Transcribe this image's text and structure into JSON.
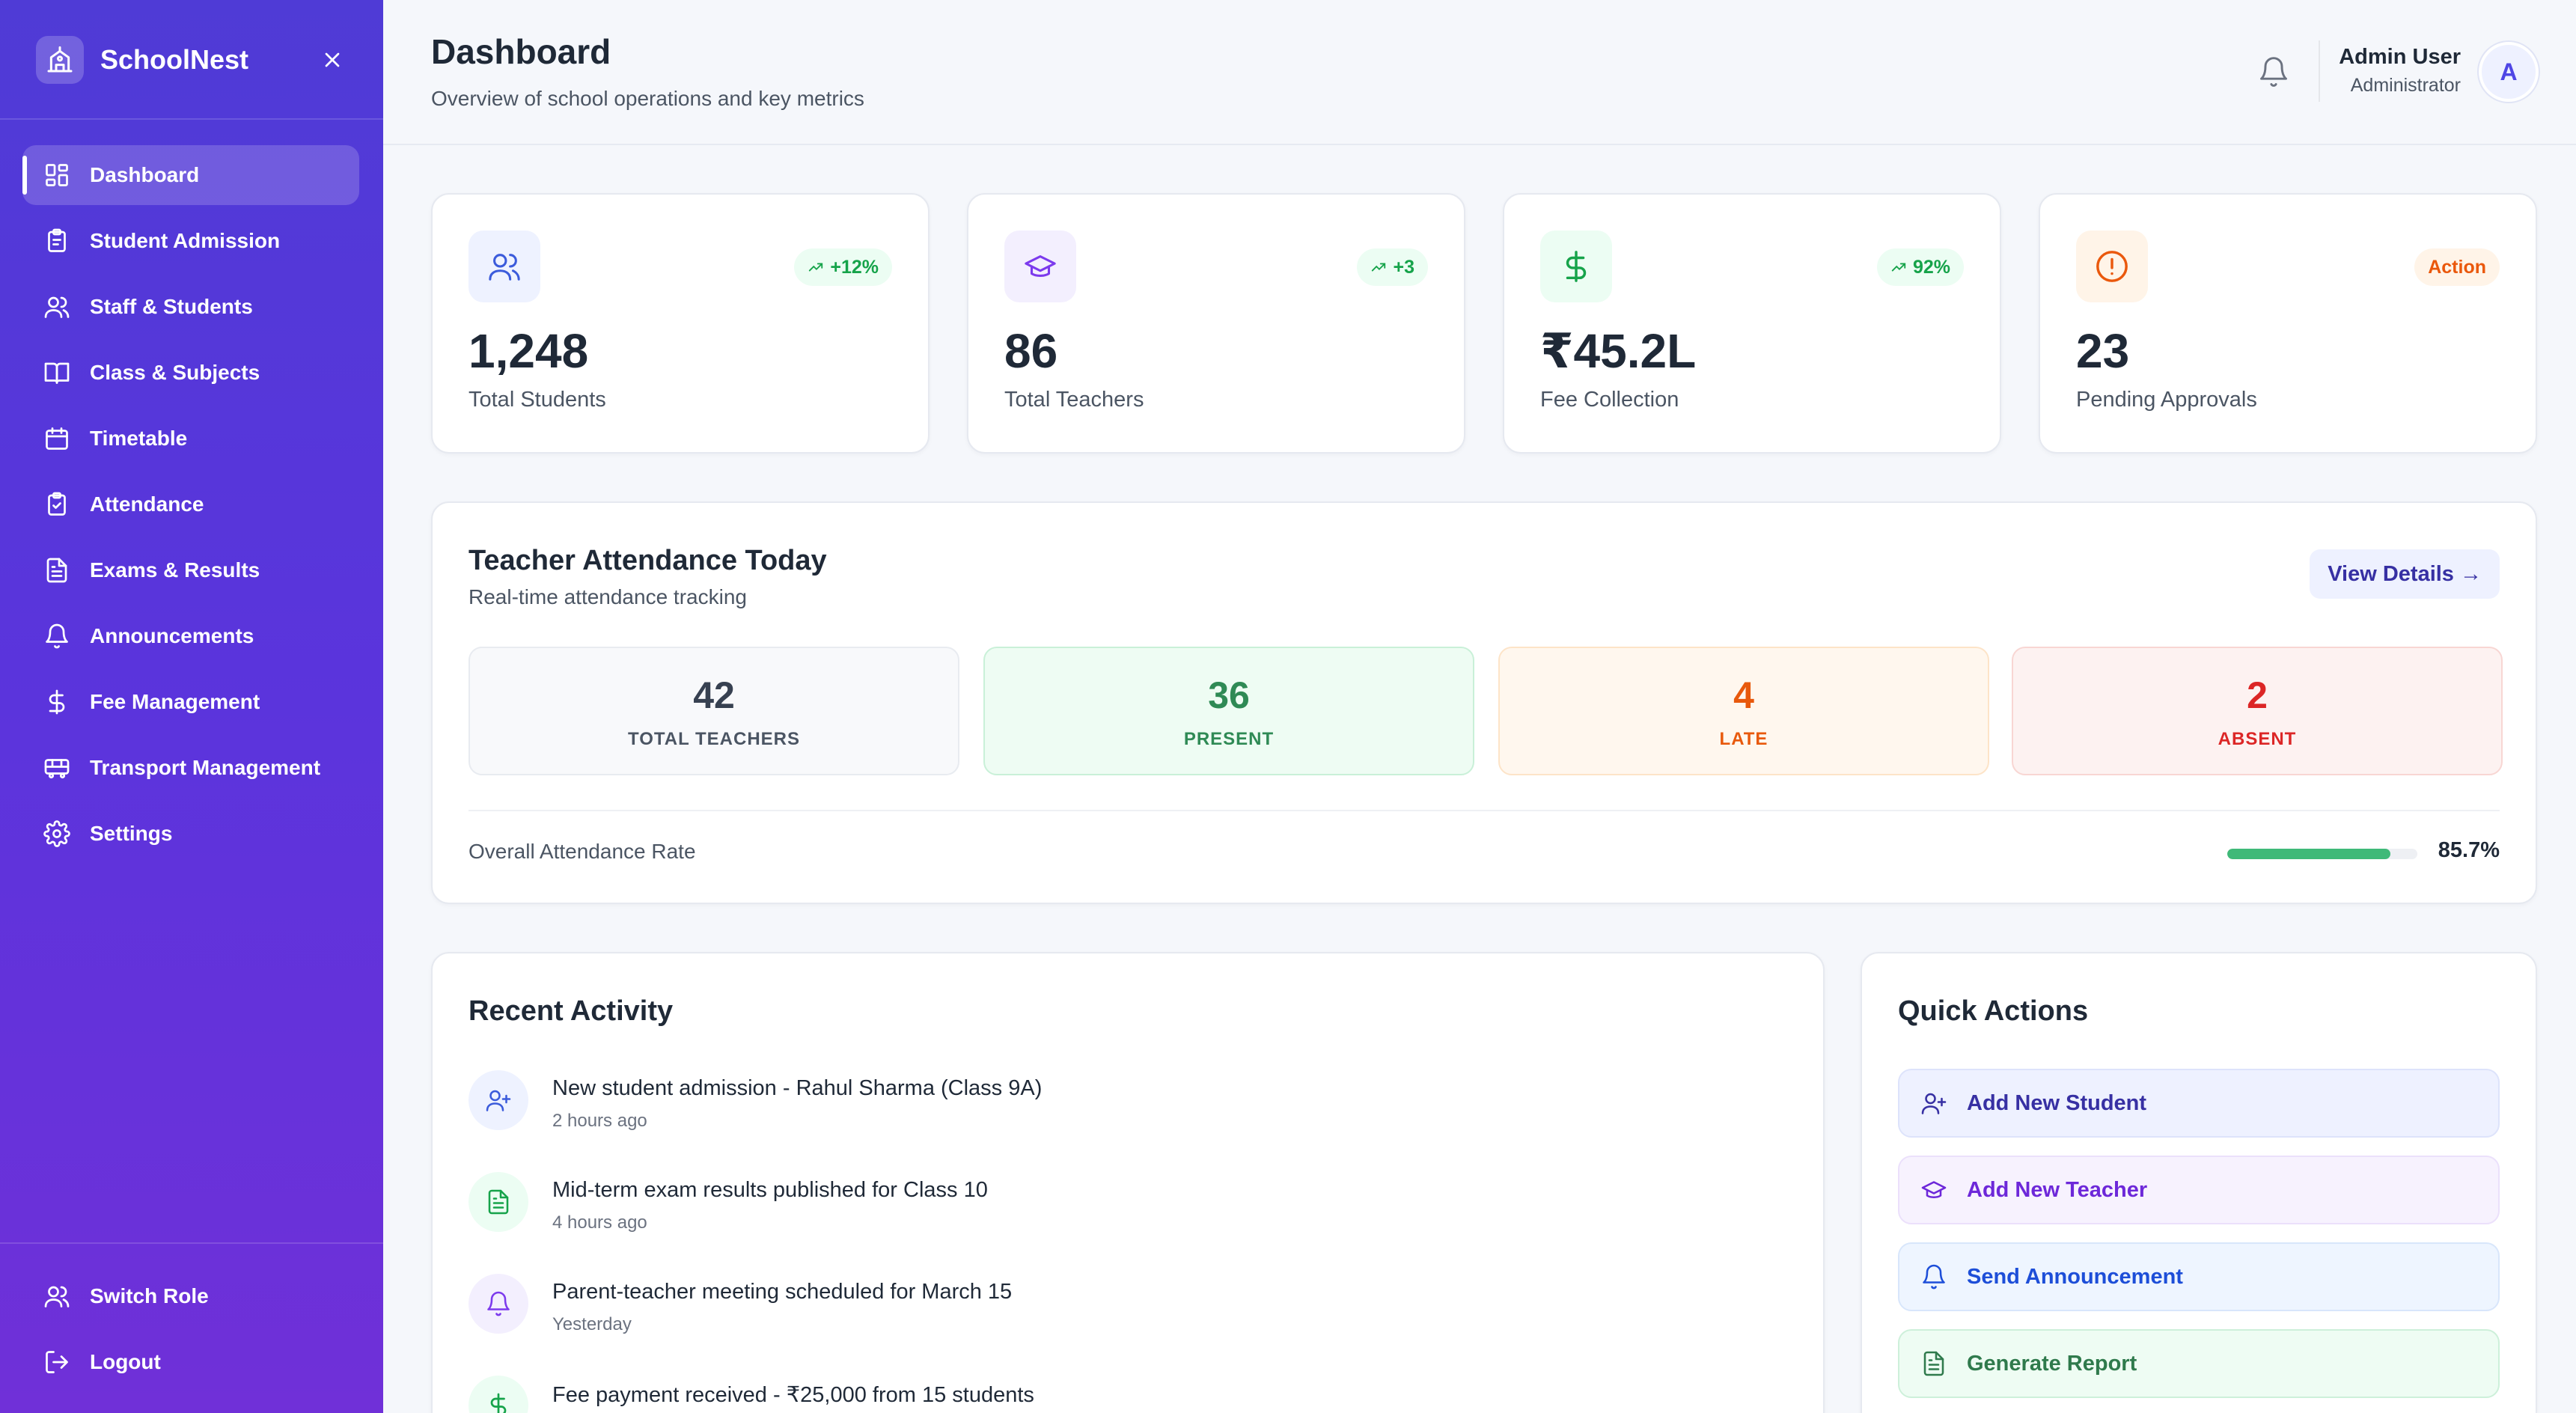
{
  "brand": {
    "name": "SchoolNest",
    "logo_icon": "school-icon",
    "close_icon": "close-icon"
  },
  "sidebar": {
    "items": [
      {
        "label": "Dashboard",
        "icon": "dashboard-grid-icon",
        "active": true
      },
      {
        "label": "Student Admission",
        "icon": "clipboard-icon"
      },
      {
        "label": "Staff & Students",
        "icon": "users-icon"
      },
      {
        "label": "Class & Subjects",
        "icon": "book-icon"
      },
      {
        "label": "Timetable",
        "icon": "calendar-icon"
      },
      {
        "label": "Attendance",
        "icon": "clipboard-check-icon"
      },
      {
        "label": "Exams & Results",
        "icon": "document-icon"
      },
      {
        "label": "Announcements",
        "icon": "bell-icon"
      },
      {
        "label": "Fee Management",
        "icon": "dollar-icon"
      },
      {
        "label": "Transport Management",
        "icon": "bus-icon"
      },
      {
        "label": "Settings",
        "icon": "gear-icon"
      }
    ],
    "bottom": [
      {
        "label": "Switch Role",
        "icon": "users-icon"
      },
      {
        "label": "Logout",
        "icon": "logout-icon"
      }
    ]
  },
  "header": {
    "title": "Dashboard",
    "subtitle": "Overview of school operations and key metrics",
    "user_name": "Admin User",
    "user_role": "Administrator",
    "avatar_initial": "A"
  },
  "stats": [
    {
      "value": "1,248",
      "label": "Total Students",
      "badge": "+12%",
      "icon": "users-icon",
      "color": "#3b5bdb",
      "bg": "#eef2ff"
    },
    {
      "value": "86",
      "label": "Total Teachers",
      "badge": "+3",
      "icon": "graduation-cap-icon",
      "color": "#7c3aed",
      "bg": "#f3effe"
    },
    {
      "value": "₹45.2L",
      "label": "Fee Collection",
      "badge": "92%",
      "icon": "dollar-icon",
      "color": "#16a34a",
      "bg": "#ecfdf3"
    },
    {
      "value": "23",
      "label": "Pending Approvals",
      "badge": "Action",
      "icon": "alert-circle-icon",
      "color": "#ea580c",
      "bg": "#fff4e8"
    }
  ],
  "attendance": {
    "title": "Teacher Attendance Today",
    "subtitle": "Real-time attendance tracking",
    "view_details": "View Details →",
    "boxes": [
      {
        "value": "42",
        "label": "TOTAL TEACHERS"
      },
      {
        "value": "36",
        "label": "PRESENT"
      },
      {
        "value": "4",
        "label": "LATE"
      },
      {
        "value": "2",
        "label": "ABSENT"
      }
    ],
    "rate_label": "Overall Attendance Rate",
    "rate_value": "85.7%",
    "rate_fraction": 0.857
  },
  "activity": {
    "title": "Recent Activity",
    "items": [
      {
        "text": "New student admission - Rahul Sharma (Class 9A)",
        "time": "2 hours ago",
        "icon": "user-plus-icon"
      },
      {
        "text": "Mid-term exam results published for Class 10",
        "time": "4 hours ago",
        "icon": "document-icon"
      },
      {
        "text": "Parent-teacher meeting scheduled for March 15",
        "time": "Yesterday",
        "icon": "bell-icon"
      },
      {
        "text": "Fee payment received - ₹25,000 from 15 students",
        "time": "",
        "icon": "dollar-icon"
      }
    ]
  },
  "quick_actions": {
    "title": "Quick Actions",
    "items": [
      {
        "label": "Add New Student",
        "icon": "user-plus-icon"
      },
      {
        "label": "Add New Teacher",
        "icon": "graduation-cap-icon"
      },
      {
        "label": "Send Announcement",
        "icon": "bell-icon"
      },
      {
        "label": "Generate Report",
        "icon": "document-icon"
      }
    ]
  }
}
